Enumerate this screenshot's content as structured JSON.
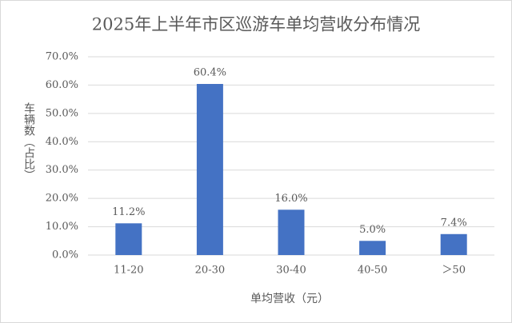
{
  "chart_data": {
    "type": "bar",
    "title": "2025年上半年市区巡游车单均营收分布情况",
    "x_label": "单均营收（元）",
    "y_label": "车辆数（占比）",
    "categories": [
      "11-20",
      "20-30",
      "30-40",
      "40-50",
      "＞50"
    ],
    "values": [
      11.2,
      60.4,
      16.0,
      5.0,
      7.4
    ],
    "value_labels": [
      "11.2%",
      "60.4%",
      "16.0%",
      "5.0%",
      "7.4%"
    ],
    "color": "#4472c4",
    "ylim": [
      0,
      70
    ],
    "yticks": [
      {
        "value": 0,
        "label": "0.0%"
      },
      {
        "value": 10,
        "label": "10.0%"
      },
      {
        "value": 20,
        "label": "20.0%"
      },
      {
        "value": 30,
        "label": "30.0%"
      },
      {
        "value": 40,
        "label": "40.0%"
      },
      {
        "value": 50,
        "label": "50.0%"
      },
      {
        "value": 60,
        "label": "60.0%"
      },
      {
        "value": 70,
        "label": "70.0%"
      }
    ],
    "grid": true
  }
}
